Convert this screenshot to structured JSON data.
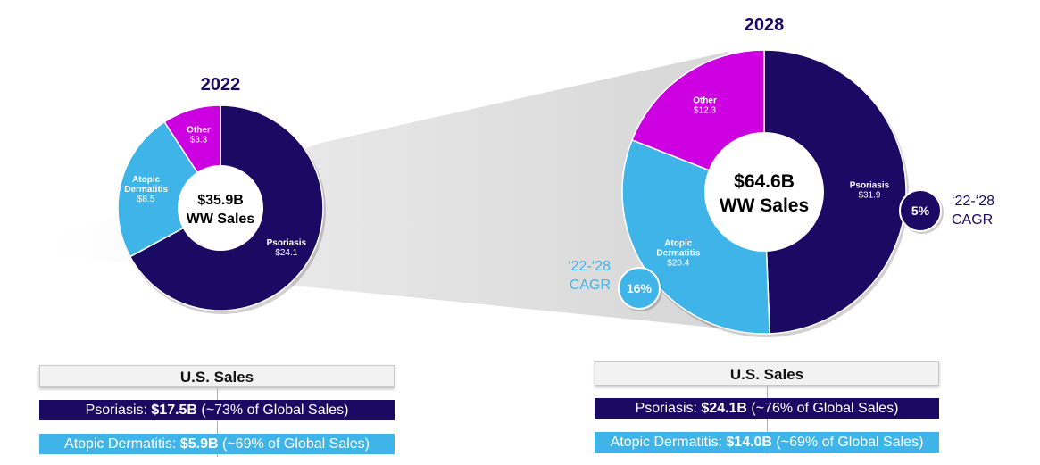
{
  "colors": {
    "psoriasis": "#1b0a63",
    "atopic_dermatitis": "#3fb4e9",
    "other": "#cc00e0",
    "year_label": "#1b0a63",
    "cagr_light": "#3fb4e9"
  },
  "chart_data": [
    {
      "type": "pie",
      "title": "2022",
      "center_label": [
        "$35.9B",
        "WW Sales"
      ],
      "slices": [
        {
          "name": "Psoriasis",
          "label": "$24.1",
          "value": 24.1
        },
        {
          "name": "Atopic Dermatitis",
          "label_lines": [
            "Atopic",
            "Dermatitis"
          ],
          "label": "$8.5",
          "value": 8.5
        },
        {
          "name": "Other",
          "label": "$3.3",
          "value": 3.3
        }
      ]
    },
    {
      "type": "pie",
      "title": "2028",
      "center_label": [
        "$64.6B",
        "WW Sales"
      ],
      "slices": [
        {
          "name": "Psoriasis",
          "label": "$31.9",
          "value": 31.9
        },
        {
          "name": "Atopic Dermatitis",
          "label_lines": [
            "Atopic",
            "Dermatitis"
          ],
          "label": "$20.4",
          "value": 20.4
        },
        {
          "name": "Other",
          "label": "$12.3",
          "value": 12.3
        }
      ],
      "cagr": [
        {
          "segment": "Psoriasis",
          "value": "5%",
          "label_lines": [
            "‘22-‘28",
            "CAGR"
          ]
        },
        {
          "segment": "Atopic Dermatitis",
          "value": "16%",
          "label_lines": [
            "‘22-‘28",
            "CAGR"
          ]
        }
      ]
    }
  ],
  "us_sales": [
    {
      "header": "U.S. Sales",
      "rows": [
        {
          "prefix": "Psoriasis: ",
          "value": "$17.5B",
          "suffix": " (~73% of Global Sales)"
        },
        {
          "prefix": "Atopic Dermatitis: ",
          "value": "$5.9B",
          "suffix": " (~69% of Global Sales)"
        }
      ]
    },
    {
      "header": "U.S. Sales",
      "rows": [
        {
          "prefix": "Psoriasis: ",
          "value": "$24.1B",
          "suffix": " (~76% of Global Sales)"
        },
        {
          "prefix": "Atopic Dermatitis: ",
          "value": "$14.0B",
          "suffix": " (~69% of Global Sales)"
        }
      ]
    }
  ]
}
